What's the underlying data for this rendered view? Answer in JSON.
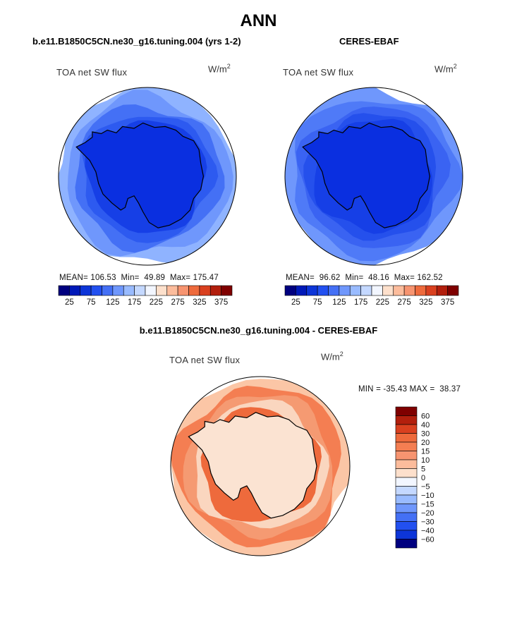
{
  "page": {
    "title": "ANN",
    "diff_title": "b.e11.B1850C5CN.ne30_g16.tuning.004 - CERES-EBAF"
  },
  "colors": {
    "land": "#0a2fe0",
    "diverging_land": "#fbe3d2"
  },
  "panels": [
    {
      "case_title": "b.e11.B1850C5CN.ne30_g16.tuning.004 (yrs 1-2)",
      "variable_label": "TOA net SW flux",
      "units_base": "W/m",
      "units_exp": "2",
      "stats": {
        "mean_label": "MEAN=",
        "mean": "106.53",
        "min_label": "Min=",
        "min": "49.89",
        "max_label": "Max=",
        "max": "175.47"
      },
      "rings": [
        "#8fb3ff",
        "#6f97fc",
        "#4470f5",
        "#2d5af0",
        "#163fe6"
      ]
    },
    {
      "case_title": "CERES-EBAF",
      "variable_label": "TOA net SW flux",
      "units_base": "W/m",
      "units_exp": "2",
      "stats": {
        "mean_label": "MEAN=",
        "mean": "96.62",
        "min_label": "Min=",
        "min": "48.16",
        "max_label": "Max=",
        "max": "162.52"
      },
      "rings": [
        "#6f97fc",
        "#4f7af7",
        "#3a63f2",
        "#2550ec",
        "#163fe6"
      ]
    },
    {
      "variable_label": "TOA net SW flux",
      "units_base": "W/m",
      "units_exp": "2",
      "stats": {
        "min_label": "MIN =",
        "min": "-35.43",
        "max_label": "MAX =",
        "max": "38.37"
      },
      "rings": [
        "#fbc6a6",
        "#f47e52",
        "#f59a72",
        "#fad6bf",
        "#ee6a3c"
      ]
    }
  ],
  "chart_data": [
    {
      "type": "heatmap",
      "title": "b.e11.B1850C5CN.ne30_g16.tuning.004 (yrs 1-2)",
      "variable": "TOA net SW flux",
      "units": "W/m2",
      "projection": "south polar stereographic",
      "stats": {
        "mean": 106.53,
        "min": 49.89,
        "max": 175.47
      },
      "colorbar": {
        "orientation": "horizontal",
        "levels": [
          25,
          75,
          125,
          175,
          225,
          275,
          325,
          375
        ],
        "colors": [
          "#00007f",
          "#0019b8",
          "#0d35d8",
          "#2250f0",
          "#4470f5",
          "#6f97fc",
          "#99bbff",
          "#c4d8ff",
          "#f2f6ff",
          "#fde0cc",
          "#fcbc9c",
          "#f79470",
          "#ee6a3c",
          "#d9401f",
          "#b21f0d",
          "#7f0000"
        ]
      }
    },
    {
      "type": "heatmap",
      "title": "CERES-EBAF",
      "variable": "TOA net SW flux",
      "units": "W/m2",
      "projection": "south polar stereographic",
      "stats": {
        "mean": 96.62,
        "min": 48.16,
        "max": 162.52
      },
      "colorbar": {
        "orientation": "horizontal",
        "levels": [
          25,
          75,
          125,
          175,
          225,
          275,
          325,
          375
        ],
        "colors": [
          "#00007f",
          "#0019b8",
          "#0d35d8",
          "#2250f0",
          "#4470f5",
          "#6f97fc",
          "#99bbff",
          "#c4d8ff",
          "#f2f6ff",
          "#fde0cc",
          "#fcbc9c",
          "#f79470",
          "#ee6a3c",
          "#d9401f",
          "#b21f0d",
          "#7f0000"
        ]
      }
    },
    {
      "type": "heatmap",
      "title": "b.e11.B1850C5CN.ne30_g16.tuning.004 - CERES-EBAF",
      "variable": "TOA net SW flux",
      "units": "W/m2",
      "projection": "south polar stereographic",
      "stats": {
        "min": -35.43,
        "max": 38.37
      },
      "colorbar": {
        "orientation": "vertical",
        "levels": [
          "60",
          "40",
          "30",
          "20",
          "15",
          "10",
          "5",
          "0",
          "−5",
          "−10",
          "−15",
          "−20",
          "−30",
          "−40",
          "−60"
        ],
        "colors": [
          "#7f0000",
          "#b21f0d",
          "#d9401f",
          "#ee6a3c",
          "#f47e52",
          "#f79470",
          "#fcbc9c",
          "#fde0cc",
          "#f2f6ff",
          "#c4d8ff",
          "#99bbff",
          "#6f97fc",
          "#4470f5",
          "#2250f0",
          "#0d35d8",
          "#00007f"
        ]
      }
    }
  ]
}
